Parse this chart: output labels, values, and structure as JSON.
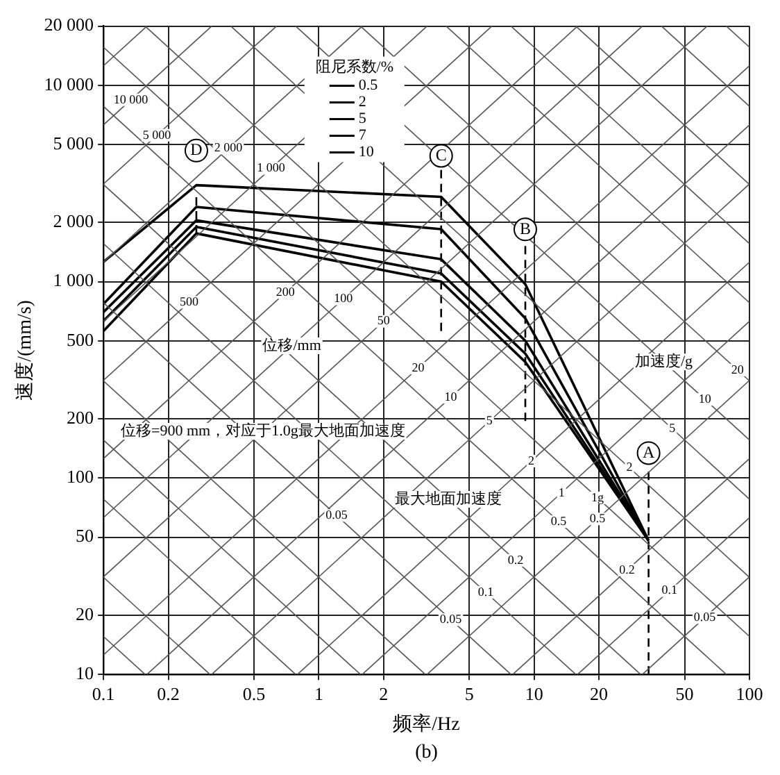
{
  "chart_data": {
    "type": "line",
    "xlabel": "频率/Hz",
    "ylabel": "速度/(mm/s)",
    "legend_title": "阻尼系数/%",
    "legend": "top",
    "log": "xy",
    "grid": true,
    "xlim": [
      0.1,
      100
    ],
    "xticks": [
      0.1,
      0.2,
      0.5,
      1,
      2,
      5,
      10,
      20,
      50,
      100
    ],
    "ylim": [
      10,
      20000
    ],
    "yticks": [
      10,
      20,
      50,
      100,
      200,
      500,
      {
        "value": 1000,
        "label": "1 000"
      },
      {
        "value": 2000,
        "label": "2 000"
      },
      {
        "value": 5000,
        "label": "5 000"
      },
      {
        "value": 10000,
        "label": "10 000"
      },
      {
        "value": 20000,
        "label": "20 000"
      }
    ],
    "series": [
      {
        "color": "#555555",
        "x": [
          31.83,
          100
        ],
        "values": [
          10,
          31.42
        ]
      },
      {
        "color": "#555555",
        "x": [
          15.92,
          100
        ],
        "values": [
          10,
          62.83
        ]
      },
      {
        "color": "#555555",
        "x": [
          7.958,
          100
        ],
        "values": [
          10,
          125.66
        ]
      },
      {
        "color": "#555555",
        "x": [
          3.183,
          100
        ],
        "values": [
          10,
          314.16
        ]
      },
      {
        "color": "#555555",
        "x": [
          1.592,
          100
        ],
        "values": [
          10,
          628.3
        ]
      },
      {
        "color": "#555555",
        "x": [
          0.7958,
          100
        ],
        "values": [
          10,
          1256.6
        ]
      },
      {
        "color": "#555555",
        "x": [
          0.3183,
          100
        ],
        "values": [
          10,
          3141.6
        ]
      },
      {
        "color": "#555555",
        "x": [
          0.1592,
          100
        ],
        "values": [
          10,
          6283
        ]
      },
      {
        "color": "#555555",
        "x": [
          0.1,
          100
        ],
        "values": [
          12.566,
          12566
        ]
      },
      {
        "color": "#555555",
        "x": [
          0.1,
          63.66
        ],
        "values": [
          31.42,
          20000
        ]
      },
      {
        "color": "#555555",
        "x": [
          0.1,
          31.83
        ],
        "values": [
          62.83,
          20000
        ]
      },
      {
        "color": "#555555",
        "x": [
          0.1,
          15.92
        ],
        "values": [
          125.66,
          20000
        ]
      },
      {
        "color": "#555555",
        "x": [
          0.1,
          6.366
        ],
        "values": [
          314.16,
          20000
        ]
      },
      {
        "color": "#555555",
        "x": [
          0.1,
          3.183
        ],
        "values": [
          628.3,
          20000
        ]
      },
      {
        "color": "#555555",
        "x": [
          0.1,
          1.592
        ],
        "values": [
          1256.6,
          20000
        ]
      },
      {
        "color": "#555555",
        "x": [
          0.1,
          0.6366
        ],
        "values": [
          3141.6,
          20000
        ]
      },
      {
        "color": "#555555",
        "x": [
          0.1,
          0.3183
        ],
        "values": [
          6283,
          20000
        ]
      },
      {
        "color": "#555555",
        "x": [
          0.1,
          0.1592
        ],
        "values": [
          12566,
          20000
        ]
      },
      {
        "color": "#555555",
        "x": [
          0.1,
          0.15613
        ],
        "values": [
          15.61,
          10
        ]
      },
      {
        "color": "#555555",
        "x": [
          0.1,
          0.3123
        ],
        "values": [
          31.23,
          10
        ]
      },
      {
        "color": "#555555",
        "x": [
          0.1,
          0.7807
        ],
        "values": [
          78.07,
          10
        ]
      },
      {
        "color": "#555555",
        "x": [
          0.1,
          1.5613
        ],
        "values": [
          156.13,
          10
        ]
      },
      {
        "color": "#555555",
        "x": [
          0.1,
          3.123
        ],
        "values": [
          312.3,
          10
        ]
      },
      {
        "color": "#555555",
        "x": [
          0.1,
          7.807
        ],
        "values": [
          780.7,
          10
        ]
      },
      {
        "color": "#555555",
        "x": [
          0.1,
          15.613
        ],
        "values": [
          1561.3,
          10
        ]
      },
      {
        "color": "#555555",
        "x": [
          0.1,
          31.23
        ],
        "values": [
          3122.6,
          10
        ]
      },
      {
        "color": "#555555",
        "x": [
          0.1,
          78.07
        ],
        "values": [
          7806.5,
          10
        ]
      },
      {
        "color": "#555555",
        "x": [
          0.1,
          100
        ],
        "values": [
          15613,
          15.613
        ]
      },
      {
        "color": "#555555",
        "x": [
          0.1561,
          100
        ],
        "values": [
          20000,
          31.23
        ]
      },
      {
        "color": "#555555",
        "x": [
          0.3903,
          100
        ],
        "values": [
          20000,
          78.07
        ]
      },
      {
        "color": "#555555",
        "x": [
          0.7807,
          100
        ],
        "values": [
          20000,
          156.13
        ]
      },
      {
        "color": "#555555",
        "x": [
          1.5613,
          100
        ],
        "values": [
          20000,
          312.3
        ]
      },
      {
        "color": "#555555",
        "x": [
          3.903,
          100
        ],
        "values": [
          20000,
          780.7
        ]
      },
      {
        "color": "#555555",
        "x": [
          7.807,
          100
        ],
        "values": [
          20000,
          1561.3
        ]
      },
      {
        "color": "#555555",
        "x": [
          15.613,
          100
        ],
        "values": [
          20000,
          3122.6
        ]
      },
      {
        "color": "#555555",
        "x": [
          39.03,
          100
        ],
        "values": [
          20000,
          7806.5
        ]
      },
      {
        "color": "#555555",
        "x": [
          78.07,
          100
        ],
        "values": [
          20000,
          15613
        ]
      },
      {
        "color": "#000000",
        "x": [
          0.27,
          0.27
        ],
        "values": [
          1760,
          2800
        ],
        "line_style": "dashed"
      },
      {
        "color": "#000000",
        "x": [
          3.7,
          3.7
        ],
        "values": [
          560,
          3770
        ],
        "line_style": "dashed"
      },
      {
        "color": "#000000",
        "x": [
          9.1,
          9.1
        ],
        "values": [
          195,
          1625
        ],
        "line_style": "dashed"
      },
      {
        "color": "#000000",
        "x": [
          34,
          34
        ],
        "values": [
          10,
          110
        ],
        "line_style": "dashed"
      },
      {
        "name": "0.5",
        "color": "#000000",
        "x": [
          0.1,
          0.27,
          3.7,
          9.1,
          34
        ],
        "values": [
          1260,
          3100,
          2700,
          970,
          48
        ]
      },
      {
        "name": "2",
        "color": "#000000",
        "x": [
          0.1,
          0.27,
          3.7,
          9.1,
          34
        ],
        "values": [
          770,
          2400,
          1850,
          650,
          48
        ]
      },
      {
        "name": "5",
        "color": "#000000",
        "x": [
          0.1,
          0.27,
          3.7,
          9.1,
          34
        ],
        "values": [
          700,
          2050,
          1300,
          500,
          48
        ]
      },
      {
        "name": "7",
        "color": "#000000",
        "x": [
          0.1,
          0.27,
          3.7,
          9.1,
          34
        ],
        "values": [
          630,
          1900,
          1100,
          430,
          48
        ]
      },
      {
        "name": "10",
        "color": "#000000",
        "x": [
          0.1,
          0.27,
          3.7,
          9.1,
          34
        ],
        "values": [
          560,
          1760,
          1000,
          390,
          48
        ]
      }
    ],
    "annotations": [
      {
        "text": "D",
        "x": 0.27,
        "y": 4650
      },
      {
        "text": "C",
        "x": 3.7,
        "y": 4370
      },
      {
        "text": "B",
        "x": 9.1,
        "y": 1845
      },
      {
        "text": "A",
        "x": 34,
        "y": 134
      },
      {
        "text": "10 000",
        "x": 0.134,
        "y": 8420
      },
      {
        "text": "5 000",
        "x": 0.177,
        "y": 5560
      },
      {
        "text": "2 000",
        "x": 0.38,
        "y": 4775
      },
      {
        "text": "1 000",
        "x": 0.6,
        "y": 3770
      },
      {
        "text": "500",
        "x": 0.25,
        "y": 785
      },
      {
        "text": "200",
        "x": 0.7,
        "y": 880
      },
      {
        "text": "100",
        "x": 1.3,
        "y": 817
      },
      {
        "text": "50",
        "x": 2.0,
        "y": 628
      },
      {
        "text": "20",
        "x": 2.89,
        "y": 363
      },
      {
        "text": "10",
        "x": 4.1,
        "y": 258
      },
      {
        "text": "5",
        "x": 6.2,
        "y": 195
      },
      {
        "text": "2",
        "x": 9.7,
        "y": 122
      },
      {
        "text": "1",
        "x": 13.4,
        "y": 84
      },
      {
        "text": "0.5",
        "x": 19.7,
        "y": 61.9
      },
      {
        "text": "0.2",
        "x": 27,
        "y": 34
      },
      {
        "text": "0.1",
        "x": 42.5,
        "y": 26.7
      },
      {
        "text": "0.05",
        "x": 62,
        "y": 19.5
      },
      {
        "text": "0.05",
        "x": 1.21,
        "y": 64.5
      },
      {
        "text": "0.05",
        "x": 4.1,
        "y": 19
      },
      {
        "text": "0.1",
        "x": 5.96,
        "y": 26.2
      },
      {
        "text": "0.2",
        "x": 8.2,
        "y": 38.1
      },
      {
        "text": "0.5",
        "x": 13,
        "y": 60
      },
      {
        "text": "1g",
        "x": 19.7,
        "y": 79.3
      },
      {
        "text": "2",
        "x": 27.7,
        "y": 112.7
      },
      {
        "text": "5",
        "x": 43.8,
        "y": 178.2
      },
      {
        "text": "10",
        "x": 62.1,
        "y": 251.4
      },
      {
        "text": "20",
        "x": 88,
        "y": 354.8
      },
      {
        "text": "位移/mm",
        "x": 0.75,
        "y": 471
      },
      {
        "text": "加速度/g",
        "x": 40,
        "y": 390
      },
      {
        "text": "最大地面加速度",
        "x": 4,
        "y": 78
      },
      {
        "text": "位移=900 mm，对应于1.0g最大地面加速度",
        "x": 0.55,
        "y": 173
      },
      "(b)"
    ]
  }
}
